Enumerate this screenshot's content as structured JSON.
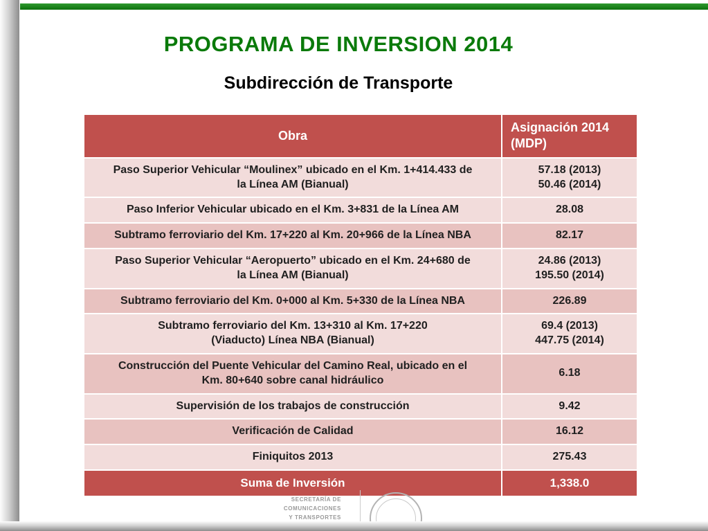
{
  "slide": {
    "title": "PROGRAMA DE INVERSION  2014",
    "subtitle": "Subdirección de Transporte"
  },
  "colors": {
    "title_green": "#0a7a0a",
    "top_bar_green": "#118011",
    "table_header_background": "#c0504d",
    "table_header_text": "#ffffff",
    "row_light": "#f2dcdb",
    "row_dark": "#e8c2c0",
    "total_row_background": "#c0504d",
    "body_text": "#202020",
    "side_bar_gray": "#8d8d8d"
  },
  "table": {
    "columns": {
      "obra": "Obra",
      "asignacion": "Asignación 2014 (MDP)"
    },
    "rows": [
      {
        "obra": "Paso Superior Vehicular “Moulinex” ubicado en el Km. 1+414.433 de\nla Línea AM   (Bianual)",
        "asignacion": "57.18 (2013)\n50.46 (2014)"
      },
      {
        "obra": "Paso Inferior Vehicular ubicado en el Km. 3+831 de la Línea AM",
        "asignacion": "28.08"
      },
      {
        "obra": "Subtramo ferroviario del Km. 17+220 al Km. 20+966 de la Línea NBA",
        "asignacion": "82.17"
      },
      {
        "obra": "Paso Superior Vehicular “Aeropuerto” ubicado en el Km. 24+680 de\nla Línea AM  (Bianual)",
        "asignacion": "24.86 (2013)\n195.50 (2014)"
      },
      {
        "obra": "Subtramo ferroviario del Km. 0+000 al Km. 5+330 de la Línea NBA",
        "asignacion": "226.89"
      },
      {
        "obra": "Subtramo ferroviario del Km. 13+310 al Km. 17+220\n(Viaducto) Línea NBA  (Bianual)",
        "asignacion": "69.4 (2013)\n447.75 (2014)"
      },
      {
        "obra": "Construcción del Puente Vehicular del Camino Real, ubicado en el\nKm. 80+640 sobre canal hidráulico",
        "asignacion": "6.18"
      },
      {
        "obra": "Supervisión de los trabajos de construcción",
        "asignacion": "9.42"
      },
      {
        "obra": "Verificación de Calidad",
        "asignacion": "16.12"
      },
      {
        "obra": "Finiquitos 2013",
        "asignacion": "275.43"
      }
    ],
    "total": {
      "label": "Suma de Inversión",
      "value": "1,338.0"
    }
  },
  "footer": {
    "logo_text": "SECRETARÍA DE\nCOMUNICACIONES\nY TRANSPORTES"
  }
}
